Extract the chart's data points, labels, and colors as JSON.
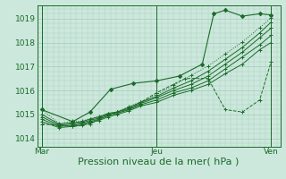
{
  "background_color": "#cce8dc",
  "grid_color": "#aacfbe",
  "line_color": "#1a6b2a",
  "xlabel": "Pression niveau de la mer( hPa )",
  "xlabel_fontsize": 8,
  "xtick_labels": [
    "Mar",
    "Jeu",
    "Ven"
  ],
  "xtick_positions": [
    0.0,
    0.5,
    1.0
  ],
  "ytick_labels": [
    "1014",
    "1015",
    "1016",
    "1017",
    "1018",
    "1019"
  ],
  "ytick_positions": [
    1014,
    1015,
    1016,
    1017,
    1018,
    1019
  ],
  "ylim": [
    1013.65,
    1019.55
  ],
  "xlim": [
    -0.02,
    1.04
  ],
  "vlines": [
    0.0,
    0.5,
    1.0
  ],
  "lines": [
    {
      "x": [
        0.0,
        0.075,
        0.135,
        0.175,
        0.21,
        0.25,
        0.29,
        0.33,
        0.38,
        0.43,
        0.5,
        0.575,
        0.65,
        0.725,
        0.8,
        0.875,
        0.95,
        1.0
      ],
      "y": [
        1015.2,
        1014.62,
        1014.72,
        1014.72,
        1014.82,
        1014.92,
        1015.02,
        1015.12,
        1015.32,
        1015.52,
        1015.82,
        1016.22,
        1016.62,
        1017.02,
        1017.52,
        1018.02,
        1018.62,
        1019.02
      ],
      "style": "dotted"
    },
    {
      "x": [
        0.0,
        0.075,
        0.135,
        0.175,
        0.21,
        0.25,
        0.29,
        0.33,
        0.38,
        0.43,
        0.5,
        0.575,
        0.65,
        0.725,
        0.8,
        0.875,
        0.95,
        1.0
      ],
      "y": [
        1015.0,
        1014.6,
        1014.65,
        1014.7,
        1014.8,
        1014.9,
        1015.05,
        1015.1,
        1015.3,
        1015.5,
        1015.75,
        1016.1,
        1016.4,
        1016.8,
        1017.3,
        1017.8,
        1018.4,
        1018.85
      ],
      "style": "solid"
    },
    {
      "x": [
        0.0,
        0.075,
        0.135,
        0.175,
        0.21,
        0.25,
        0.29,
        0.33,
        0.38,
        0.43,
        0.5,
        0.575,
        0.65,
        0.725,
        0.8,
        0.875,
        0.95,
        1.0
      ],
      "y": [
        1014.9,
        1014.55,
        1014.6,
        1014.65,
        1014.75,
        1014.85,
        1015.0,
        1015.1,
        1015.25,
        1015.45,
        1015.7,
        1016.0,
        1016.25,
        1016.6,
        1017.1,
        1017.6,
        1018.2,
        1018.6
      ],
      "style": "solid"
    },
    {
      "x": [
        0.0,
        0.075,
        0.135,
        0.175,
        0.21,
        0.25,
        0.29,
        0.33,
        0.38,
        0.43,
        0.5,
        0.575,
        0.65,
        0.725,
        0.8,
        0.875,
        0.95,
        1.0
      ],
      "y": [
        1014.8,
        1014.5,
        1014.55,
        1014.6,
        1014.7,
        1014.8,
        1014.95,
        1015.05,
        1015.2,
        1015.4,
        1015.6,
        1015.9,
        1016.1,
        1016.4,
        1016.9,
        1017.4,
        1017.9,
        1018.3
      ],
      "style": "solid"
    },
    {
      "x": [
        0.0,
        0.075,
        0.135,
        0.175,
        0.21,
        0.25,
        0.29,
        0.33,
        0.38,
        0.43,
        0.5,
        0.575,
        0.65,
        0.725,
        0.8,
        0.875,
        0.95,
        1.0
      ],
      "y": [
        1014.7,
        1014.45,
        1014.5,
        1014.55,
        1014.65,
        1014.75,
        1014.9,
        1015.0,
        1015.15,
        1015.35,
        1015.5,
        1015.8,
        1016.0,
        1016.25,
        1016.7,
        1017.1,
        1017.7,
        1018.0
      ],
      "style": "solid"
    },
    {
      "x": [
        0.0,
        0.135,
        0.21,
        0.29,
        0.38,
        0.5,
        0.625,
        0.725,
        0.8,
        0.875,
        0.95,
        1.0
      ],
      "y": [
        1014.6,
        1014.5,
        1014.6,
        1015.0,
        1015.2,
        1015.9,
        1016.5,
        1016.5,
        1015.2,
        1015.1,
        1015.6,
        1017.2
      ],
      "style": "dashed"
    },
    {
      "x": [
        0.0,
        0.135,
        0.21,
        0.3,
        0.4,
        0.5,
        0.6,
        0.7,
        0.75,
        0.8,
        0.875,
        0.95,
        1.0
      ],
      "y": [
        1015.2,
        1014.7,
        1015.1,
        1016.05,
        1016.3,
        1016.4,
        1016.6,
        1017.1,
        1019.2,
        1019.35,
        1019.1,
        1019.2,
        1019.15
      ],
      "style": "solid_marker"
    }
  ]
}
